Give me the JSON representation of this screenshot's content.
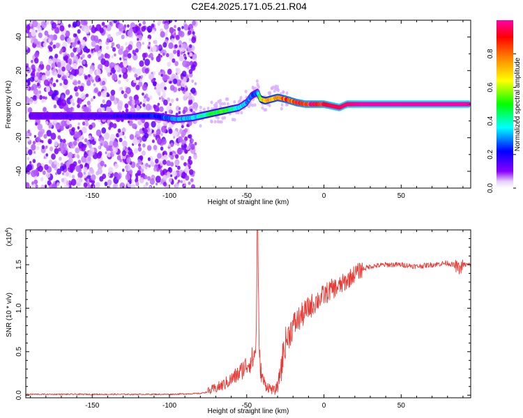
{
  "title": "C2E4.2025.171.05.21.R04",
  "chart_data": [
    {
      "type": "heatmap",
      "xlabel": "Height of straight line (km)",
      "ylabel": "Frequency (Hz)",
      "xlim": [
        -193,
        95
      ],
      "ylim": [
        -50,
        50
      ],
      "x_ticks": [
        -150,
        -100,
        -50,
        0,
        50
      ],
      "y_ticks": [
        -40,
        -20,
        0,
        20,
        40
      ],
      "colorbar": {
        "label": "Normalized spectral amplitude",
        "range": [
          0,
          1
        ],
        "ticks": [
          "0.0",
          "0.2",
          "0.4",
          "0.6",
          "0.8"
        ],
        "colors": [
          "#ffffff",
          "#8800ff",
          "#0000ff",
          "#00ffff",
          "#00ff00",
          "#ffff00",
          "#ff8000",
          "#ff0000",
          "#ff00aa"
        ]
      },
      "noise_region_x": [
        -193,
        -83
      ],
      "ridge": {
        "x": [
          -190,
          -170,
          -150,
          -130,
          -110,
          -95,
          -85,
          -75,
          -65,
          -55,
          -50,
          -47,
          -45,
          -43,
          -41,
          -38,
          -30,
          -25,
          -18,
          -12,
          -5,
          0,
          5,
          10,
          15,
          25,
          50,
          75,
          94
        ],
        "freq": [
          -7,
          -7,
          -7,
          -7,
          -7,
          -9,
          -8,
          -6,
          -4,
          -2,
          1,
          5,
          6,
          7,
          3,
          2,
          4,
          3,
          1,
          0,
          0,
          0,
          -1,
          -2,
          0,
          0,
          0,
          0,
          0
        ],
        "amplitude": [
          0.12,
          0.14,
          0.15,
          0.18,
          0.22,
          0.3,
          0.35,
          0.45,
          0.5,
          0.35,
          0.3,
          0.28,
          0.25,
          0.27,
          0.6,
          0.7,
          0.75,
          0.8,
          0.85,
          0.9,
          0.9,
          0.92,
          0.95,
          0.95,
          0.97,
          1.0,
          1.0,
          1.0,
          1.0
        ]
      }
    },
    {
      "type": "line",
      "xlabel": "Height of straight line (km)",
      "ylabel": "SNR (10 * v/v)",
      "y_multiplier": "(x10",
      "y_multiplier_exp": "4",
      "y_multiplier_close": ")",
      "xlim": [
        -193,
        95
      ],
      "ylim": [
        -0.03,
        1.9
      ],
      "x_ticks": [
        -150,
        -100,
        -50,
        0,
        50
      ],
      "y_ticks": [
        0.0,
        0.5,
        1.0,
        1.5
      ],
      "y_tick_labels": [
        "0.0",
        "0.5",
        "1.0",
        "1.5"
      ],
      "color": "#e83a35",
      "series": [
        {
          "x": [
            -193,
            -150,
            -100,
            -80,
            -75,
            -70,
            -65,
            -60,
            -55,
            -50,
            -47,
            -45,
            -44,
            -43,
            -42,
            -41,
            -40,
            -38,
            -35,
            -32,
            -30,
            -28,
            -25,
            -20,
            -15,
            -10,
            -5,
            0,
            5,
            10,
            15,
            20,
            25,
            30,
            40,
            50,
            60,
            70,
            80,
            85,
            88,
            90,
            95
          ],
          "y": [
            0.01,
            0.01,
            0.01,
            0.02,
            0.04,
            0.08,
            0.12,
            0.18,
            0.25,
            0.35,
            0.4,
            0.45,
            0.6,
            1.9,
            0.5,
            0.3,
            0.2,
            0.12,
            0.08,
            0.05,
            0.1,
            0.3,
            0.6,
            0.8,
            0.9,
            1.0,
            1.08,
            1.15,
            1.22,
            1.25,
            1.32,
            1.4,
            1.45,
            1.48,
            1.5,
            1.5,
            1.48,
            1.5,
            1.52,
            1.49,
            1.45,
            1.5,
            1.5
          ]
        }
      ]
    }
  ]
}
